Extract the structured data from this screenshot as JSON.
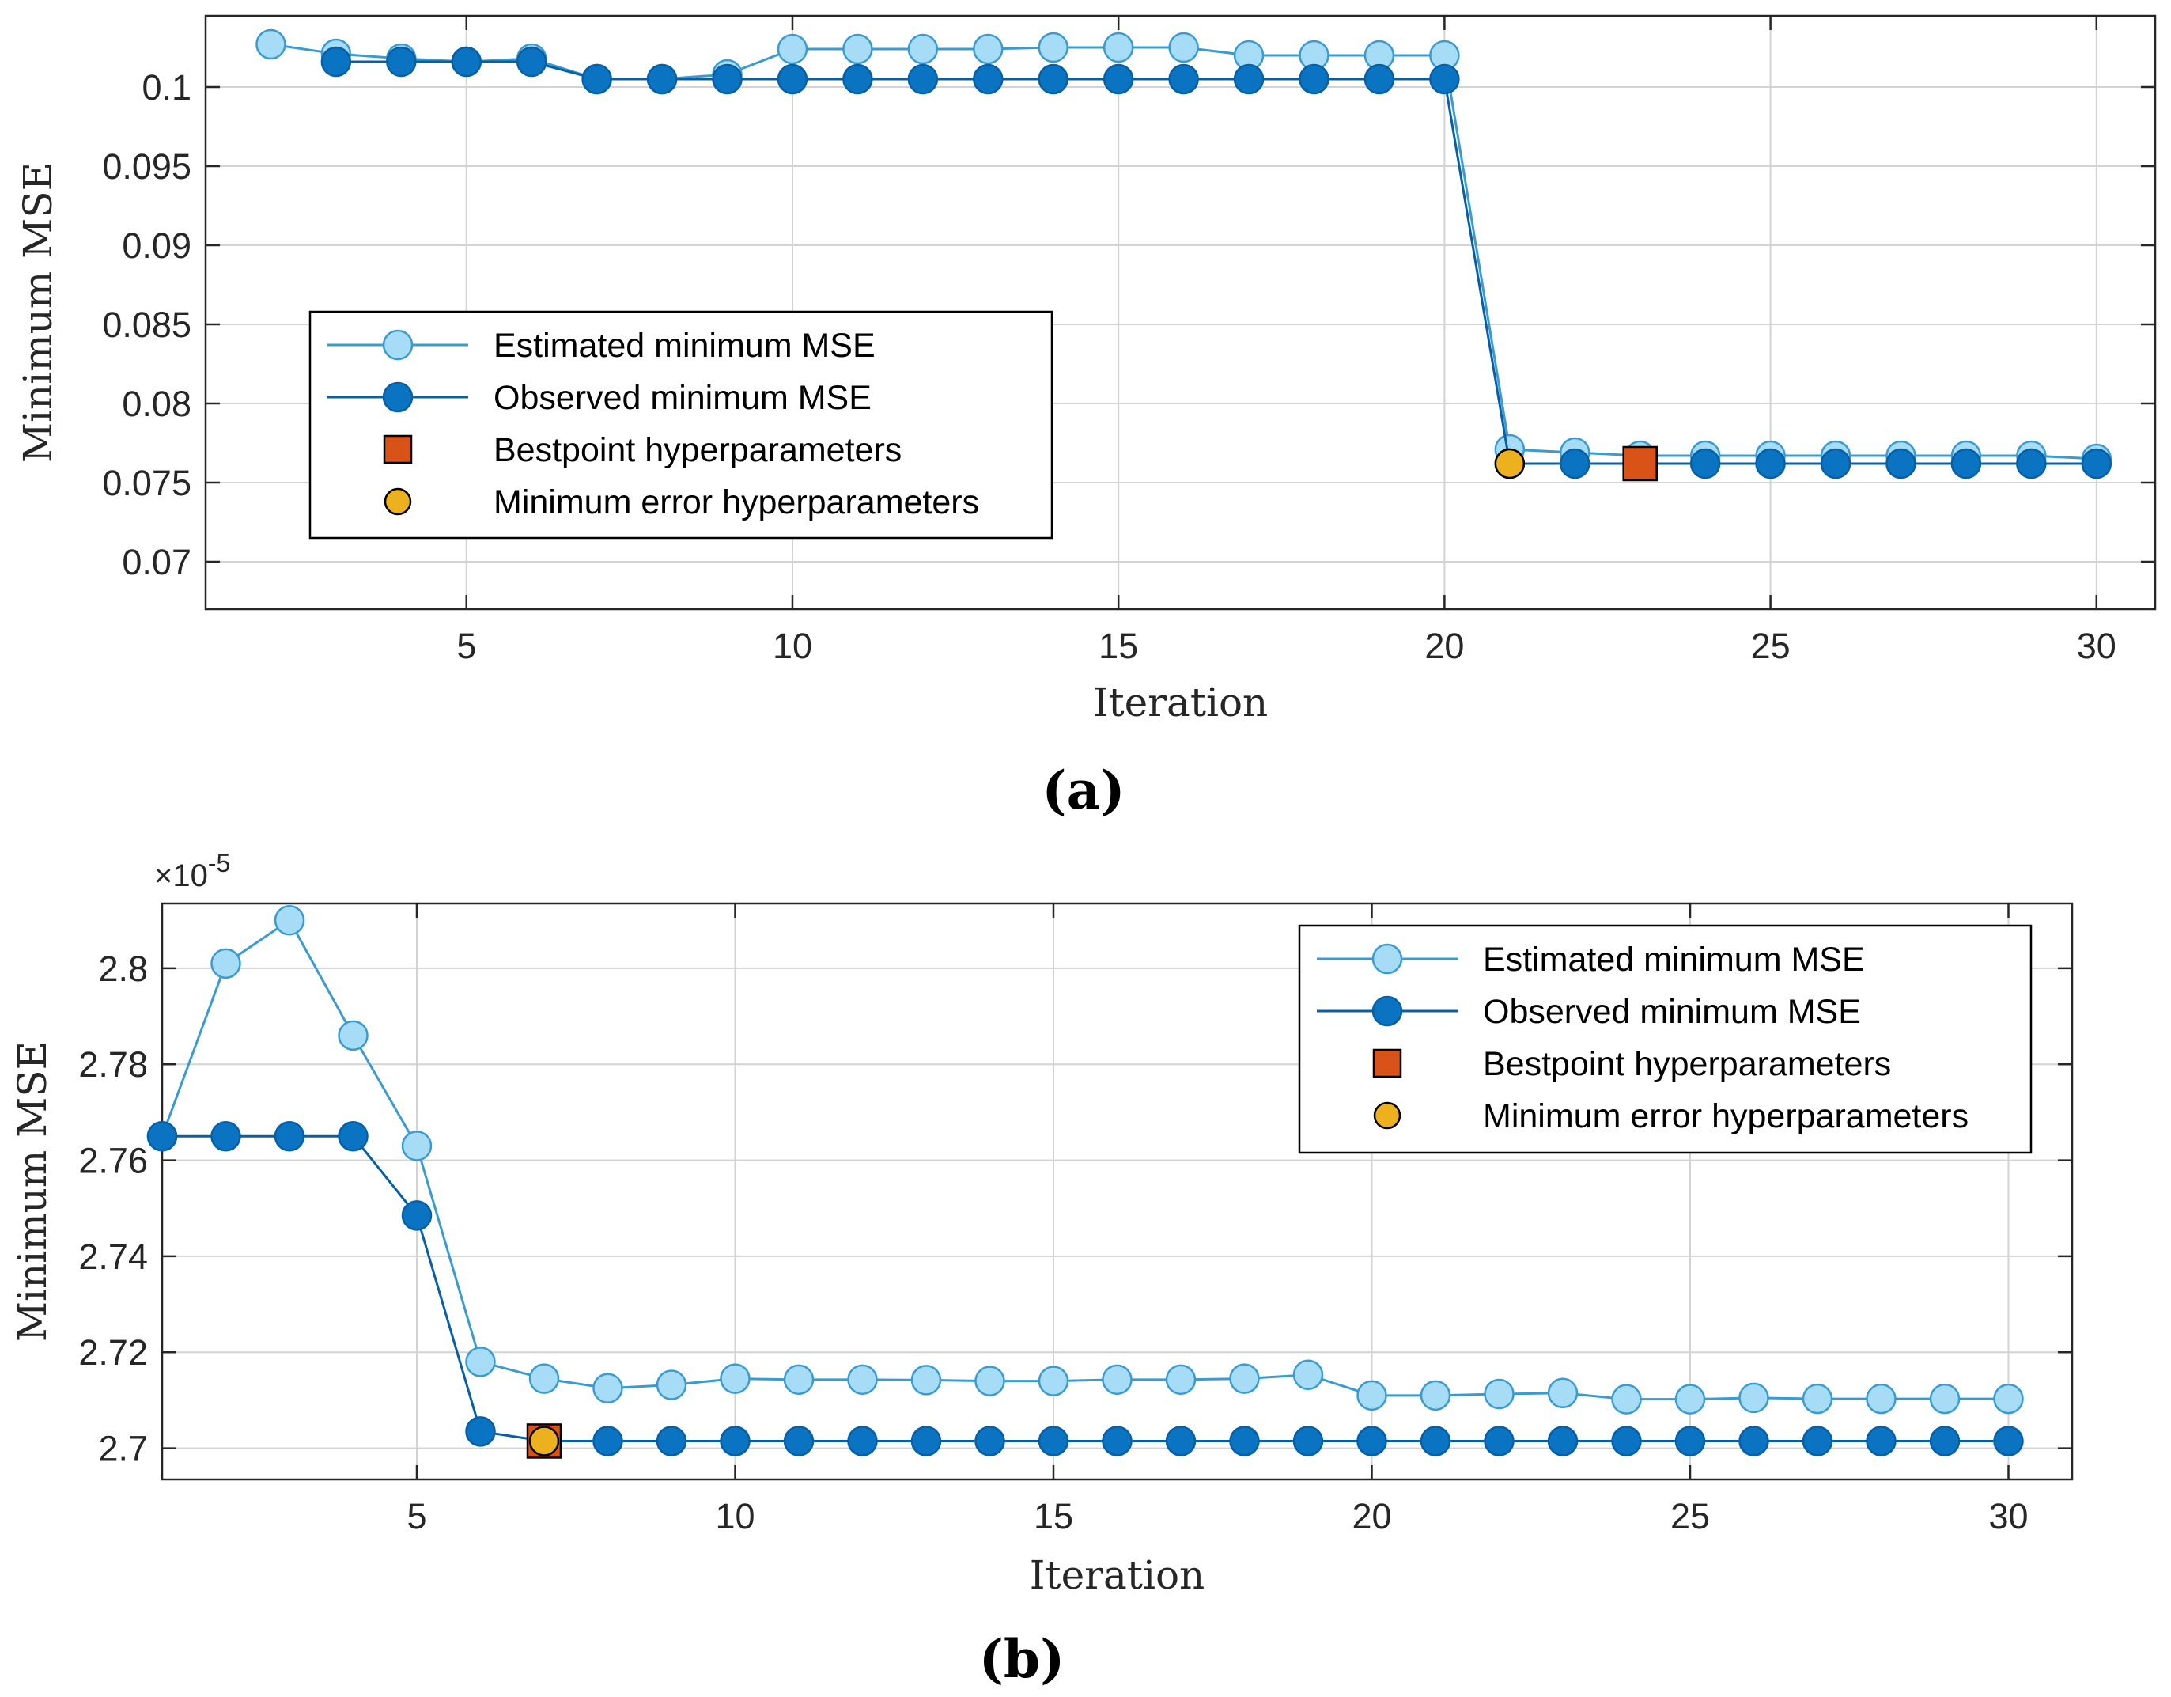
{
  "figure": {
    "panel_labels": [
      "(a)",
      "(b)"
    ]
  },
  "colors": {
    "estimated_fill": "#a6dcf6",
    "estimated_edge": "#3a9bd0",
    "observed_fill": "#0a73c2",
    "observed_edge": "#0760a6",
    "bestpoint_fill": "#d95319",
    "minerror_fill": "#edb120",
    "grid": "#d3d3d3",
    "axis": "#262626"
  },
  "chart_data": [
    {
      "type": "line",
      "panel": "(a)",
      "title": "",
      "xlabel": "Iteration",
      "ylabel": "Minimum MSE",
      "xlim": [
        1,
        30.9
      ],
      "ylim": [
        0.067,
        0.1045
      ],
      "xticks": [
        5,
        10,
        15,
        20,
        25,
        30
      ],
      "yticks": [
        0.07,
        0.075,
        0.08,
        0.085,
        0.09,
        0.095,
        0.1
      ],
      "ytick_labels": [
        "0.07",
        "0.075",
        "0.08",
        "0.085",
        "0.09",
        "0.095",
        "0.1"
      ],
      "grid": true,
      "legend_position": "center-left",
      "series": [
        {
          "name": "Estimated minimum MSE",
          "x": [
            2,
            3,
            4,
            5,
            6,
            7,
            8,
            9,
            10,
            11,
            12,
            13,
            14,
            15,
            16,
            17,
            18,
            19,
            20,
            21,
            22,
            23,
            24,
            25,
            26,
            27,
            28,
            29,
            30
          ],
          "values": [
            0.1027,
            0.1021,
            0.1018,
            0.1016,
            0.1018,
            0.1005,
            0.1005,
            0.1008,
            0.1024,
            0.1024,
            0.1024,
            0.1024,
            0.1025,
            0.1025,
            0.1025,
            0.102,
            0.102,
            0.102,
            0.102,
            0.0771,
            0.0769,
            0.0767,
            0.0767,
            0.0767,
            0.0767,
            0.0767,
            0.0767,
            0.0767,
            0.0765
          ]
        },
        {
          "name": "Observed minimum MSE",
          "x": [
            3,
            4,
            5,
            6,
            7,
            8,
            9,
            10,
            11,
            12,
            13,
            14,
            15,
            16,
            17,
            18,
            19,
            20,
            21,
            22,
            23,
            24,
            25,
            26,
            27,
            28,
            29,
            30
          ],
          "values": [
            0.1016,
            0.1016,
            0.1016,
            0.1016,
            0.1005,
            0.1005,
            0.1005,
            0.1005,
            0.1005,
            0.1005,
            0.1005,
            0.1005,
            0.1005,
            0.1005,
            0.1005,
            0.1005,
            0.1005,
            0.1005,
            0.0762,
            0.0762,
            0.0762,
            0.0762,
            0.0762,
            0.0762,
            0.0762,
            0.0762,
            0.0762,
            0.0762
          ]
        }
      ],
      "markers": [
        {
          "name": "Bestpoint hyperparameters",
          "x": 23,
          "y": 0.0762
        },
        {
          "name": "Minimum error hyperparameters",
          "x": 21,
          "y": 0.0762
        }
      ]
    },
    {
      "type": "line",
      "panel": "(b)",
      "title": "",
      "xlabel": "Iteration",
      "ylabel": "Minimum MSE",
      "y_exponent_base": "×10",
      "y_exponent_power": "-5",
      "xlim": [
        1,
        31
      ],
      "ylim": [
        2.6935,
        2.8135
      ],
      "xticks": [
        5,
        10,
        15,
        20,
        25,
        30
      ],
      "yticks": [
        2.7,
        2.72,
        2.74,
        2.76,
        2.78,
        2.8
      ],
      "ytick_labels": [
        "2.7",
        "2.72",
        "2.74",
        "2.76",
        "2.78",
        "2.8"
      ],
      "grid": true,
      "legend_position": "top-right",
      "series": [
        {
          "name": "Estimated minimum MSE",
          "x": [
            1,
            2,
            3,
            4,
            5,
            6,
            7,
            8,
            9,
            10,
            11,
            12,
            13,
            14,
            15,
            16,
            17,
            18,
            19,
            20,
            21,
            22,
            23,
            24,
            25,
            26,
            27,
            28,
            29,
            30
          ],
          "values": [
            2.765,
            2.801,
            2.81,
            2.786,
            2.763,
            2.718,
            2.7145,
            2.7125,
            2.7132,
            2.7145,
            2.7143,
            2.7143,
            2.7142,
            2.714,
            2.714,
            2.7143,
            2.7143,
            2.7145,
            2.7153,
            2.711,
            2.711,
            2.7113,
            2.7115,
            2.7102,
            2.7102,
            2.7105,
            2.7103,
            2.7103,
            2.7103,
            2.7103
          ]
        },
        {
          "name": "Observed minimum MSE",
          "x": [
            1,
            2,
            3,
            4,
            5,
            6,
            7,
            8,
            9,
            10,
            11,
            12,
            13,
            14,
            15,
            16,
            17,
            18,
            19,
            20,
            21,
            22,
            23,
            24,
            25,
            26,
            27,
            28,
            29,
            30
          ],
          "values": [
            2.765,
            2.765,
            2.765,
            2.765,
            2.7485,
            2.7035,
            2.7015,
            2.7015,
            2.7015,
            2.7015,
            2.7015,
            2.7015,
            2.7015,
            2.7015,
            2.7015,
            2.7015,
            2.7015,
            2.7015,
            2.7015,
            2.7015,
            2.7015,
            2.7015,
            2.7015,
            2.7015,
            2.7015,
            2.7015,
            2.7015,
            2.7015,
            2.7015,
            2.7015
          ]
        }
      ],
      "markers": [
        {
          "name": "Bestpoint hyperparameters",
          "x": 7,
          "y": 2.7015
        },
        {
          "name": "Minimum error hyperparameters",
          "x": 7,
          "y": 2.7015
        }
      ]
    }
  ]
}
